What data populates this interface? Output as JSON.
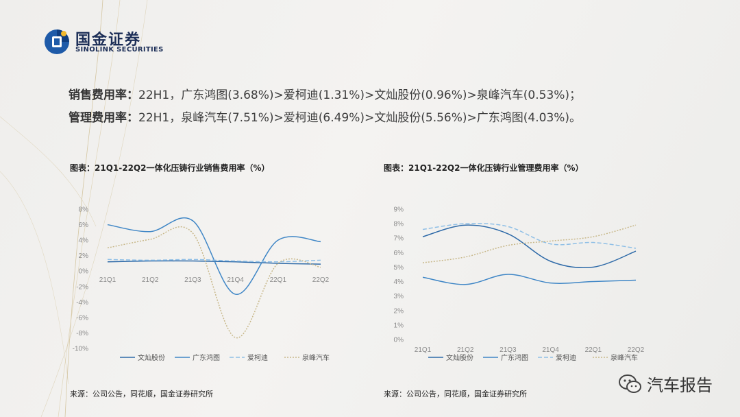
{
  "logo": {
    "cn": "国金证券",
    "en": "SINOLINK SECURITIES"
  },
  "summary": [
    {
      "label": "销售费用率：",
      "text": "22H1，广东鸿图(3.68%)>爱柯迪(1.31%)>文灿股份(0.96%)>泉峰汽车(0.53%)；"
    },
    {
      "label": "管理费用率：",
      "text": "22H1，泉峰汽车(7.51%)>爱柯迪(6.49%)>文灿股份(5.56%)>广东鸿图(4.03%)。"
    }
  ],
  "charts": [
    {
      "title": "图表：21Q1-22Q2一体化压铸行业销售费用率（%）",
      "source": "来源：公司公告，同花顺，国金证券研究所"
    },
    {
      "title": "图表：21Q1-22Q2一体化压铸行业管理费用率（%）",
      "source": "来源：公司公告，同花顺，国金证券研究所"
    }
  ],
  "chart_data": [
    {
      "type": "line",
      "categories": [
        "21Q1",
        "21Q2",
        "21Q3",
        "21Q4",
        "22Q1",
        "22Q2"
      ],
      "ylim": [
        -10,
        8
      ],
      "yticks": [
        8,
        6,
        4,
        2,
        0,
        -2,
        -4,
        -6,
        -8,
        -10
      ],
      "ytick_labels": [
        "8%",
        "6%",
        "4%",
        "2%",
        "0%",
        "-2%",
        "-4%",
        "-6%",
        "-8%",
        "-10%"
      ],
      "grid": false,
      "legend": "bottom",
      "series": [
        {
          "name": "文灿股份",
          "values": [
            1.2,
            1.3,
            1.3,
            1.2,
            1.0,
            0.9
          ],
          "color": "#2e6aa8",
          "dash": "solid"
        },
        {
          "name": "广东鸿图",
          "values": [
            6.0,
            5.1,
            6.5,
            -3.0,
            4.0,
            3.8
          ],
          "color": "#3f86c6",
          "dash": "solid"
        },
        {
          "name": "爱柯迪",
          "values": [
            1.5,
            1.4,
            1.5,
            1.3,
            1.2,
            1.4
          ],
          "color": "#8fbfe6",
          "dash": "dashed"
        },
        {
          "name": "泉峰汽车",
          "values": [
            3.0,
            4.1,
            4.9,
            -8.6,
            1.0,
            0.5
          ],
          "color": "#c8b88a",
          "dash": "dotted"
        }
      ]
    },
    {
      "type": "line",
      "categories": [
        "21Q1",
        "21Q2",
        "21Q3",
        "21Q4",
        "22Q1",
        "22Q2"
      ],
      "ylim": [
        0,
        9
      ],
      "yticks": [
        9,
        8,
        7,
        6,
        5,
        4,
        3,
        2,
        1,
        0
      ],
      "ytick_labels": [
        "9%",
        "8%",
        "7%",
        "6%",
        "5%",
        "4%",
        "3%",
        "2%",
        "1%",
        "0%"
      ],
      "grid": false,
      "legend": "bottom",
      "series": [
        {
          "name": "文灿股份",
          "values": [
            7.1,
            7.9,
            7.3,
            5.4,
            5.0,
            6.1
          ],
          "color": "#2e6aa8",
          "dash": "solid"
        },
        {
          "name": "广东鸿图",
          "values": [
            4.3,
            3.8,
            4.5,
            3.9,
            4.0,
            4.1
          ],
          "color": "#3f86c6",
          "dash": "solid"
        },
        {
          "name": "爱柯迪",
          "values": [
            7.6,
            8.0,
            7.8,
            6.6,
            6.7,
            6.3
          ],
          "color": "#8fbfe6",
          "dash": "dashed"
        },
        {
          "name": "泉峰汽车",
          "values": [
            5.3,
            5.7,
            6.5,
            6.8,
            7.1,
            7.9
          ],
          "color": "#c8b88a",
          "dash": "dotted"
        }
      ]
    }
  ],
  "watermark": {
    "text": "汽车报告"
  }
}
